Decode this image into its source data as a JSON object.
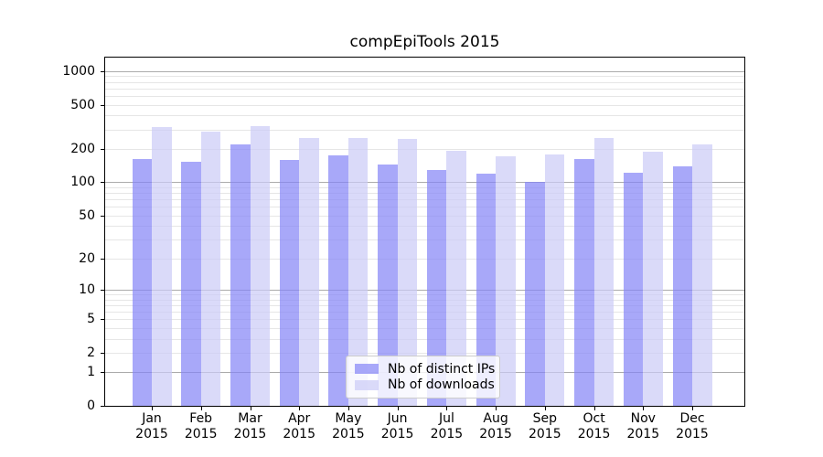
{
  "title": "compEpiTools 2015",
  "chart_data": {
    "type": "bar",
    "title": "compEpiTools 2015",
    "xlabel": "",
    "ylabel": "",
    "yscale": "log1p",
    "grid": true,
    "categories": [
      "Jan",
      "Feb",
      "Mar",
      "Apr",
      "May",
      "Jun",
      "Jul",
      "Aug",
      "Sep",
      "Oct",
      "Nov",
      "Dec"
    ],
    "year_label": "2015",
    "y_ticks": [
      0,
      1,
      2,
      5,
      10,
      20,
      50,
      100,
      200,
      500,
      1000
    ],
    "y_major_grid": [
      1,
      10,
      100,
      1000
    ],
    "y_minor_grid": [
      2,
      3,
      4,
      5,
      6,
      7,
      8,
      9,
      20,
      30,
      40,
      50,
      60,
      70,
      80,
      90,
      200,
      300,
      400,
      500,
      600,
      700,
      800,
      900
    ],
    "series": [
      {
        "name": "Nb of distinct IPs",
        "color": "rgba(131,131,247,0.7)",
        "values": [
          163,
          152,
          218,
          158,
          176,
          145,
          129,
          120,
          100,
          162,
          123,
          139
        ]
      },
      {
        "name": "Nb of downloads",
        "color": "rgba(203,203,247,0.7)",
        "values": [
          316,
          288,
          320,
          249,
          253,
          245,
          192,
          170,
          178,
          249,
          188,
          220
        ]
      }
    ],
    "legend_position": "lower center",
    "axis_color": "#000000",
    "major_grid_color": "#ababab",
    "minor_grid_color": "#e6e6e6",
    "background_color": "#ffffff"
  }
}
